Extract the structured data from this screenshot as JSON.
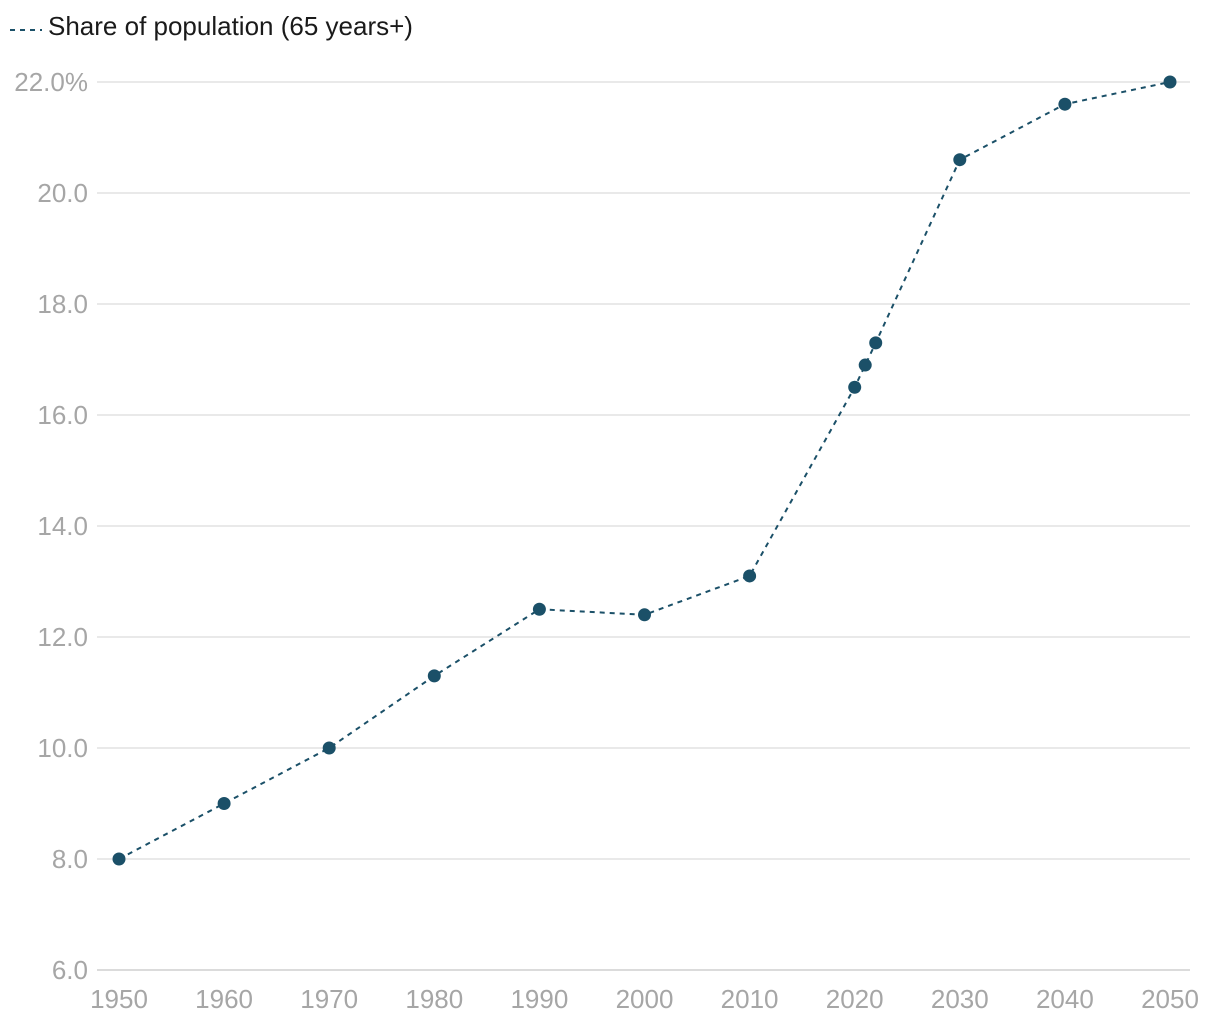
{
  "chart_data": {
    "type": "line",
    "title": "",
    "xlabel": "",
    "ylabel": "",
    "legend_position": "top-left",
    "colors": {
      "series": "#1b5068",
      "grid": "#e2e2e2",
      "tick_label": "#a6a6a6",
      "legend_text": "#1a1a1a"
    },
    "xlim": [
      1950,
      2050
    ],
    "ylim": [
      6.0,
      22.0
    ],
    "x_ticks": [
      1950,
      1960,
      1970,
      1980,
      1990,
      2000,
      2010,
      2020,
      2030,
      2040,
      2050
    ],
    "x_tick_labels": [
      "1950",
      "1960",
      "1970",
      "1980",
      "1990",
      "2000",
      "2010",
      "2020",
      "2030",
      "2040",
      "2050"
    ],
    "y_ticks": [
      6.0,
      8.0,
      10.0,
      12.0,
      14.0,
      16.0,
      18.0,
      20.0,
      22.0
    ],
    "y_tick_labels": [
      "6.0",
      "8.0",
      "10.0",
      "12.0",
      "14.0",
      "16.0",
      "18.0",
      "20.0",
      "22.0%"
    ],
    "series": [
      {
        "name": "Share of population (65 years+)",
        "line_style": "dashed",
        "marker": "circle",
        "x": [
          1950,
          1960,
          1970,
          1980,
          1990,
          2000,
          2010,
          2020,
          2021,
          2022,
          2030,
          2040,
          2050
        ],
        "values": [
          8.0,
          9.0,
          10.0,
          11.3,
          12.5,
          12.4,
          13.1,
          16.5,
          16.9,
          17.3,
          20.6,
          21.6,
          22.0
        ]
      }
    ]
  }
}
